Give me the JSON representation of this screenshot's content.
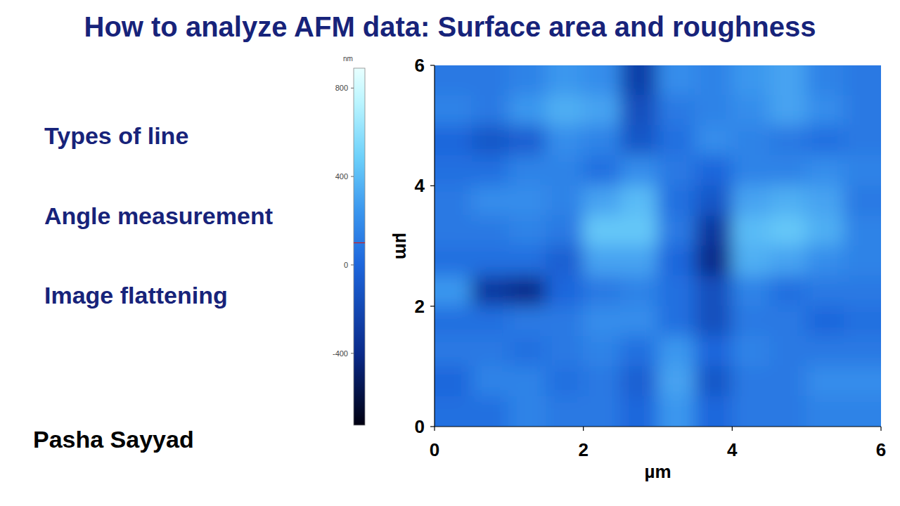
{
  "header": {
    "title": "How to analyze AFM data: Surface area and roughness"
  },
  "sidebar": {
    "items": [
      "Types of line",
      "Angle measurement",
      "Image flattening"
    ],
    "author": "Pasha Sayyad"
  },
  "chart_data": {
    "type": "heatmap",
    "x_label": "µm",
    "y_label": "µm",
    "xlim": [
      0,
      6
    ],
    "ylim": [
      0,
      6
    ],
    "xticks": [
      0,
      2,
      4,
      6
    ],
    "yticks": [
      0,
      2,
      4,
      6
    ],
    "cells": [
      [
        100,
        100,
        150,
        250,
        200,
        -250,
        200,
        150,
        250,
        300,
        150,
        100
      ],
      [
        150,
        100,
        250,
        350,
        300,
        -150,
        100,
        150,
        200,
        300,
        200,
        100
      ],
      [
        0,
        -100,
        -50,
        200,
        150,
        -100,
        50,
        200,
        150,
        100,
        50,
        100
      ],
      [
        50,
        50,
        150,
        150,
        50,
        200,
        100,
        0,
        150,
        150,
        200,
        150
      ],
      [
        100,
        200,
        200,
        150,
        300,
        400,
        50,
        -100,
        300,
        350,
        300,
        100
      ],
      [
        100,
        100,
        150,
        100,
        450,
        450,
        100,
        -300,
        400,
        450,
        350,
        150
      ],
      [
        50,
        50,
        50,
        -50,
        300,
        300,
        0,
        -400,
        350,
        300,
        200,
        150
      ],
      [
        250,
        -300,
        -400,
        0,
        100,
        150,
        50,
        -150,
        150,
        50,
        100,
        100
      ],
      [
        50,
        50,
        100,
        100,
        200,
        200,
        50,
        -150,
        100,
        100,
        0,
        50
      ],
      [
        100,
        100,
        50,
        100,
        150,
        50,
        250,
        0,
        150,
        100,
        100,
        100
      ],
      [
        0,
        150,
        150,
        50,
        100,
        -50,
        300,
        -100,
        100,
        100,
        200,
        200
      ],
      [
        50,
        50,
        150,
        100,
        100,
        0,
        250,
        0,
        100,
        100,
        150,
        150
      ]
    ],
    "colorbar": {
      "label": "nm",
      "range": [
        -725,
        890
      ],
      "ticks": [
        -400,
        0,
        400,
        800
      ],
      "marker": 100
    }
  }
}
